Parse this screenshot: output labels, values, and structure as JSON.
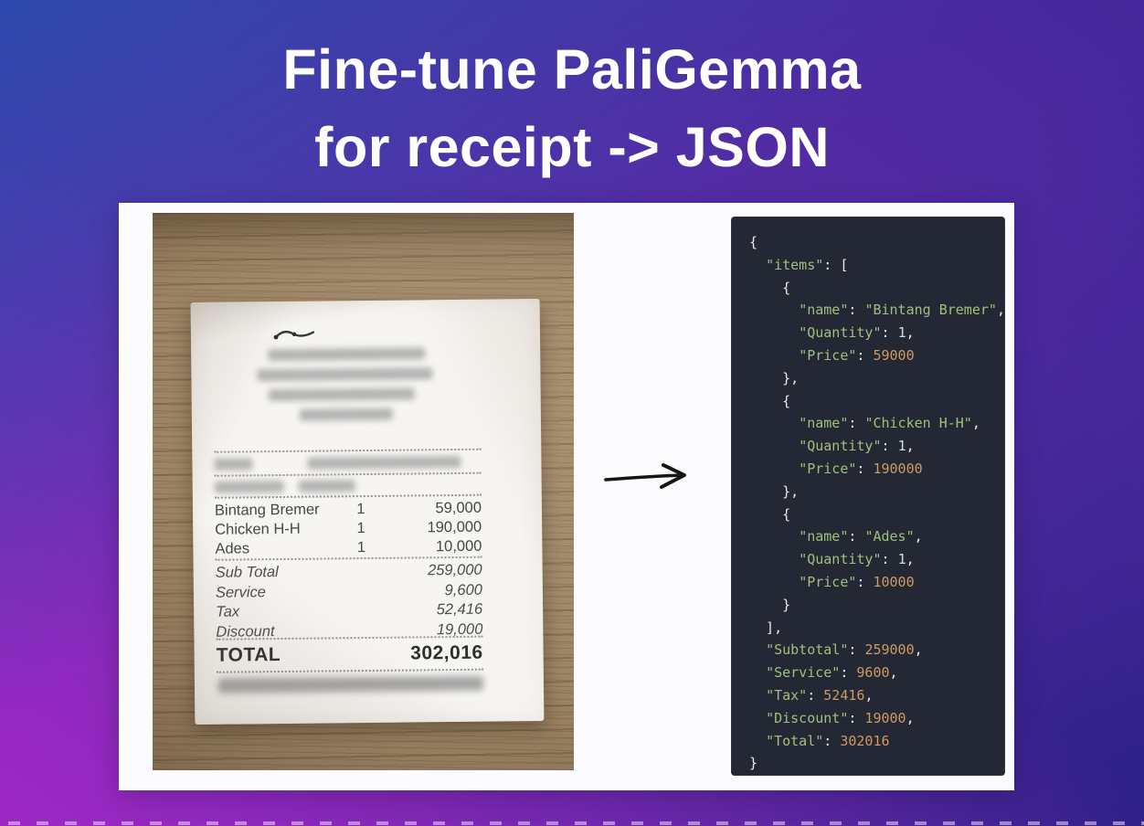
{
  "title": {
    "line1": "Fine-tune PaliGemma",
    "line2": "for receipt -> JSON"
  },
  "receipt_photo": {
    "items": [
      {
        "name": "Bintang Bremer",
        "qty": "1",
        "price": "59,000"
      },
      {
        "name": "Chicken H-H",
        "qty": "1",
        "price": "190,000"
      },
      {
        "name": "Ades",
        "qty": "1",
        "price": "10,000"
      }
    ],
    "totals": [
      {
        "label": "Sub Total",
        "value": "259,000"
      },
      {
        "label": "Service",
        "value": "9,600"
      },
      {
        "label": "Tax",
        "value": "52,416"
      },
      {
        "label": "Discount",
        "value": "19,000"
      }
    ],
    "total_label": "TOTAL",
    "total_value": "302,016"
  },
  "code_panel": {
    "lines": [
      [
        [
          "p",
          "{"
        ]
      ],
      [
        [
          "p",
          "  "
        ],
        [
          "k",
          "\"items\""
        ],
        [
          "p",
          ": ["
        ]
      ],
      [
        [
          "p",
          "    {"
        ]
      ],
      [
        [
          "p",
          "      "
        ],
        [
          "k",
          "\"name\""
        ],
        [
          "p",
          ": "
        ],
        [
          "k",
          "\"Bintang Bremer\""
        ],
        [
          "p",
          ","
        ]
      ],
      [
        [
          "p",
          "      "
        ],
        [
          "k",
          "\"Quantity\""
        ],
        [
          "p",
          ": "
        ],
        [
          "q",
          "1"
        ],
        [
          "p",
          ","
        ]
      ],
      [
        [
          "p",
          "      "
        ],
        [
          "k",
          "\"Price\""
        ],
        [
          "p",
          ": "
        ],
        [
          "n",
          "59000"
        ]
      ],
      [
        [
          "p",
          "    },"
        ]
      ],
      [
        [
          "p",
          "    {"
        ]
      ],
      [
        [
          "p",
          "      "
        ],
        [
          "k",
          "\"name\""
        ],
        [
          "p",
          ": "
        ],
        [
          "k",
          "\"Chicken H-H\""
        ],
        [
          "p",
          ","
        ]
      ],
      [
        [
          "p",
          "      "
        ],
        [
          "k",
          "\"Quantity\""
        ],
        [
          "p",
          ": "
        ],
        [
          "q",
          "1"
        ],
        [
          "p",
          ","
        ]
      ],
      [
        [
          "p",
          "      "
        ],
        [
          "k",
          "\"Price\""
        ],
        [
          "p",
          ": "
        ],
        [
          "n",
          "190000"
        ]
      ],
      [
        [
          "p",
          "    },"
        ]
      ],
      [
        [
          "p",
          "    {"
        ]
      ],
      [
        [
          "p",
          "      "
        ],
        [
          "k",
          "\"name\""
        ],
        [
          "p",
          ": "
        ],
        [
          "k",
          "\"Ades\""
        ],
        [
          "p",
          ","
        ]
      ],
      [
        [
          "p",
          "      "
        ],
        [
          "k",
          "\"Quantity\""
        ],
        [
          "p",
          ": "
        ],
        [
          "q",
          "1"
        ],
        [
          "p",
          ","
        ]
      ],
      [
        [
          "p",
          "      "
        ],
        [
          "k",
          "\"Price\""
        ],
        [
          "p",
          ": "
        ],
        [
          "n",
          "10000"
        ]
      ],
      [
        [
          "p",
          "    }"
        ]
      ],
      [
        [
          "p",
          "  ],"
        ]
      ],
      [
        [
          "p",
          "  "
        ],
        [
          "k",
          "\"Subtotal\""
        ],
        [
          "p",
          ": "
        ],
        [
          "n",
          "259000"
        ],
        [
          "p",
          ","
        ]
      ],
      [
        [
          "p",
          "  "
        ],
        [
          "k",
          "\"Service\""
        ],
        [
          "p",
          ": "
        ],
        [
          "n",
          "9600"
        ],
        [
          "p",
          ","
        ]
      ],
      [
        [
          "p",
          "  "
        ],
        [
          "k",
          "\"Tax\""
        ],
        [
          "p",
          ": "
        ],
        [
          "n",
          "52416"
        ],
        [
          "p",
          ","
        ]
      ],
      [
        [
          "p",
          "  "
        ],
        [
          "k",
          "\"Discount\""
        ],
        [
          "p",
          ": "
        ],
        [
          "n",
          "19000"
        ],
        [
          "p",
          ","
        ]
      ],
      [
        [
          "p",
          "  "
        ],
        [
          "k",
          "\"Total\""
        ],
        [
          "p",
          ": "
        ],
        [
          "n",
          "302016"
        ]
      ],
      [
        [
          "p",
          "}"
        ]
      ]
    ]
  },
  "colors": {
    "background_top_left": "#2b4aad",
    "background_top_right": "#44289b",
    "background_bottom_left": "#a127c5",
    "background_bottom_right": "#2a2085",
    "card_background": "#fcfbfd",
    "code_background": "#232834",
    "code_key_string": "#9ec07a",
    "code_number": "#cf9a62",
    "code_punctuation": "#e7eaee",
    "code_quantity_value": "#d7dce2",
    "title_text": "#ffffff"
  }
}
